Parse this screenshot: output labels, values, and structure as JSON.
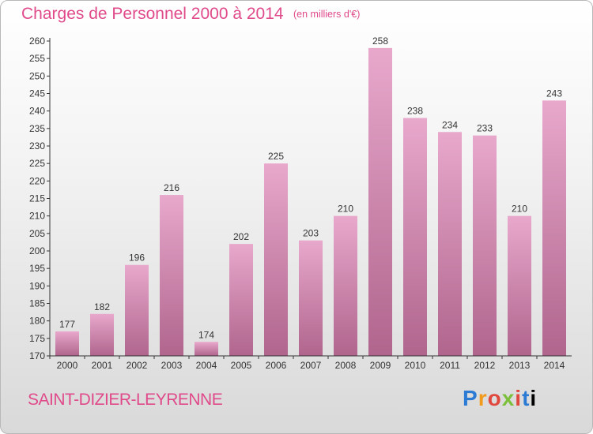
{
  "header": {
    "title": "Charges de Personnel 2000 à 2014",
    "subtitle": "(en milliers d'€)"
  },
  "footer": {
    "town": "SAINT-DIZIER-LEYRENNE",
    "logo_text": "Proxiti"
  },
  "colors": {
    "accent": "#e04a8a",
    "bar_light": "#e8a8cc",
    "bar_dark": "#b0658d",
    "axis": "#333333"
  },
  "chart_data": {
    "type": "bar",
    "title": "Charges de Personnel 2000 à 2014",
    "subtitle": "(en milliers d'€)",
    "xlabel": "",
    "ylabel": "",
    "categories": [
      "2000",
      "2001",
      "2002",
      "2003",
      "2004",
      "2005",
      "2006",
      "2007",
      "2008",
      "2009",
      "2010",
      "2011",
      "2012",
      "2013",
      "2014"
    ],
    "values": [
      177,
      182,
      196,
      216,
      174,
      202,
      225,
      203,
      210,
      258,
      238,
      234,
      233,
      210,
      243
    ],
    "ylim": [
      170,
      260
    ],
    "ytick_step": 5,
    "grid": false,
    "data_labels": true
  }
}
